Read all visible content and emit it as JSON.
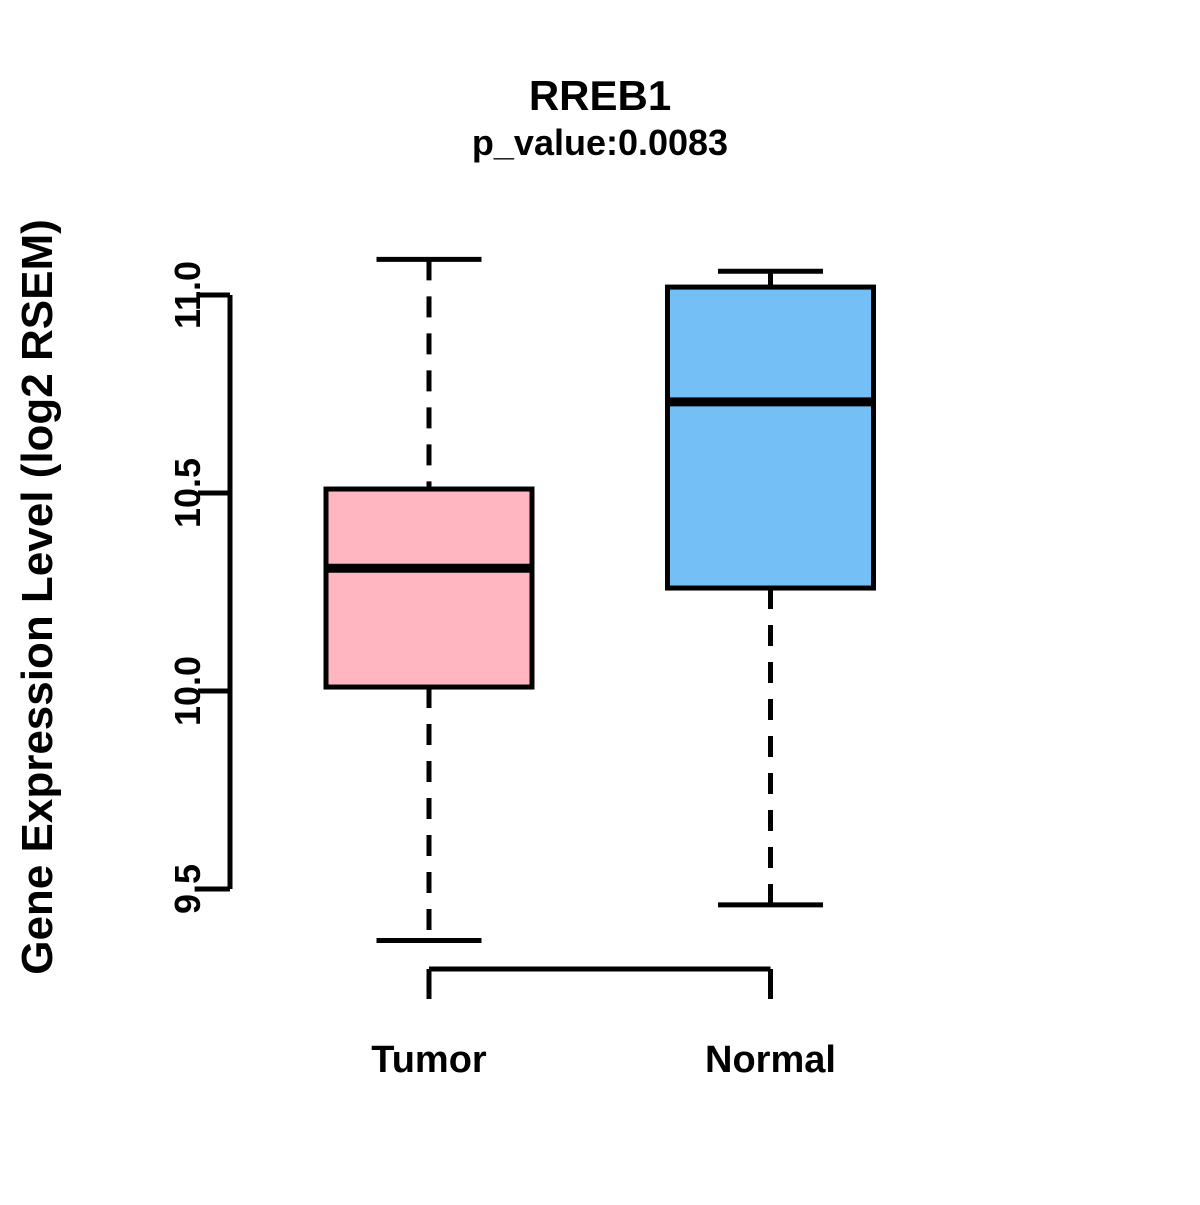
{
  "chart_data": {
    "type": "boxplot",
    "title": "RREB1",
    "subtitle": "p_value:0.0083",
    "ylabel": "Gene Expression Level (log2 RSEM)",
    "xlabel": "",
    "categories": [
      "Tumor",
      "Normal"
    ],
    "yticks": [
      "11.0",
      "10.5",
      "10.0",
      "9.5"
    ],
    "ytick_values": [
      11.0,
      10.5,
      10.0,
      9.5
    ],
    "ylim": [
      9.3,
      11.15
    ],
    "grid": false,
    "legend_position": "none",
    "axis_color": "#000000",
    "background_color": "#ffffff",
    "series": [
      {
        "name": "Tumor",
        "color": "#ffb6c1",
        "border_color": "#000000",
        "whisker_low": 9.37,
        "q1": 10.01,
        "median": 10.31,
        "q3": 10.51,
        "whisker_high": 11.09
      },
      {
        "name": "Normal",
        "color": "#74bff5",
        "border_color": "#000000",
        "whisker_low": 9.46,
        "q1": 10.26,
        "median": 10.73,
        "q3": 11.02,
        "whisker_high": 11.06
      }
    ]
  }
}
